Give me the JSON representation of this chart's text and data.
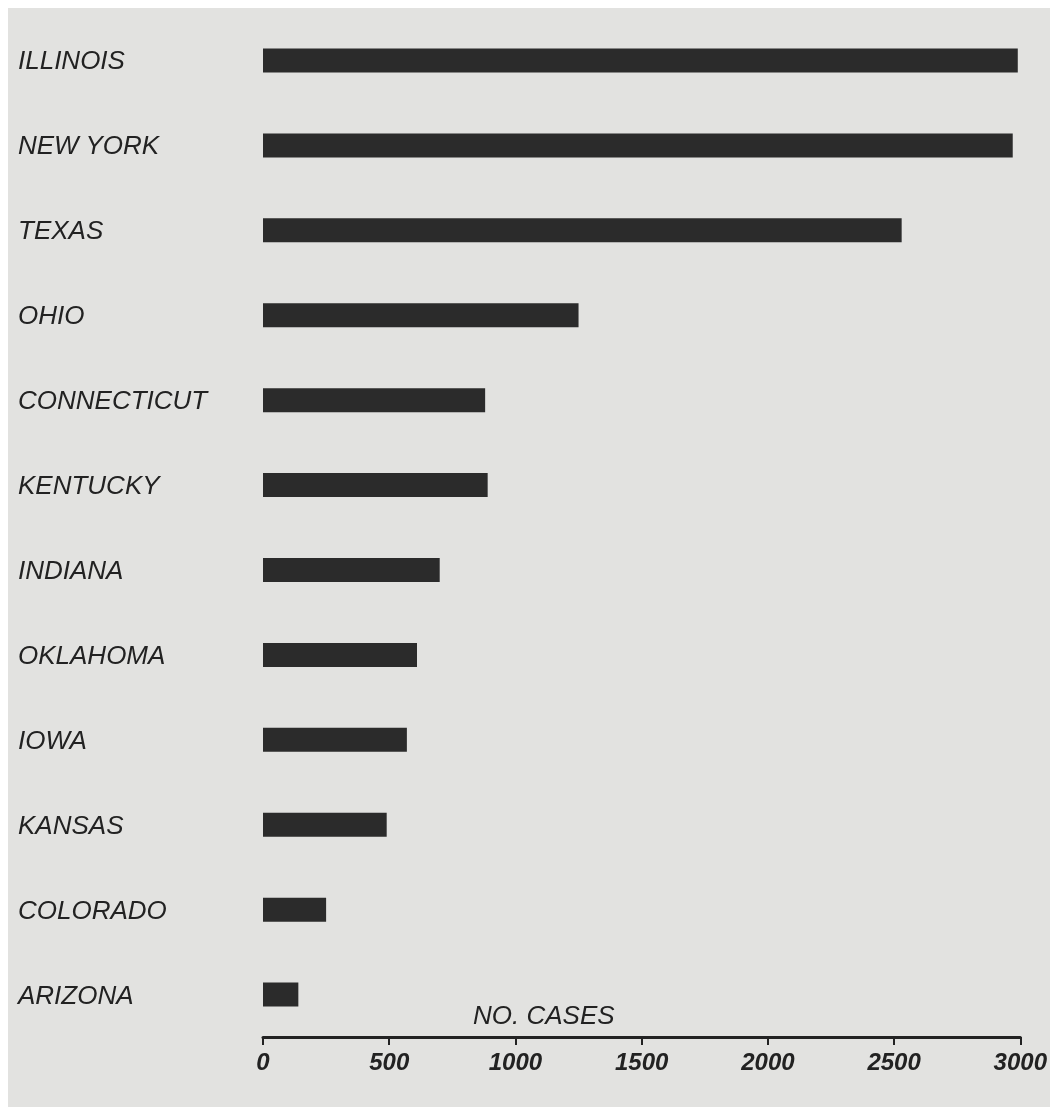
{
  "chart_data": {
    "type": "bar",
    "orientation": "horizontal",
    "xlabel": "NO. CASES",
    "categories": [
      "ILLINOIS",
      "NEW YORK",
      "TEXAS",
      "OHIO",
      "CONNECTICUT",
      "KENTUCKY",
      "INDIANA",
      "OKLAHOMA",
      "IOWA",
      "KANSAS",
      "COLORADO",
      "ARIZONA"
    ],
    "values": [
      2990,
      2970,
      2530,
      1250,
      880,
      890,
      700,
      610,
      570,
      490,
      250,
      140
    ],
    "color": "#2b2b2b",
    "xlim": [
      0,
      3000
    ],
    "xticks": [
      0,
      500,
      1000,
      1500,
      2000,
      2500,
      3000
    ],
    "grid": false
  }
}
